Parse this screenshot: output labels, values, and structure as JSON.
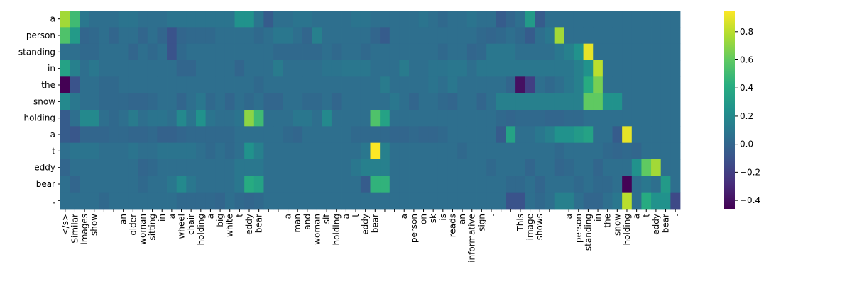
{
  "chart_data": {
    "type": "heatmap",
    "colormap": "viridis",
    "x_labels": [
      "</s>",
      "Similar",
      "images",
      "show",
      null,
      null,
      "an",
      "older",
      "woman",
      "sitting",
      "in",
      "a",
      "wheel",
      "chair",
      "holding",
      "a",
      "big",
      "white",
      "t",
      "eddy",
      "bear",
      null,
      null,
      "a",
      "man",
      "and",
      "woman",
      "sit",
      "holding",
      "a",
      "t",
      "eddy",
      "bear",
      null,
      null,
      "a",
      "person",
      "on",
      "sk",
      "is",
      "reads",
      "an",
      "informative",
      "sign",
      ".",
      null,
      null,
      "This",
      "image",
      "shows",
      null,
      null,
      "a",
      "person",
      "standing",
      "in",
      "the",
      "snow",
      "holding",
      "a",
      "t",
      "eddy",
      "bear",
      "."
    ],
    "y_labels": [
      "a",
      "person",
      "standing",
      "in",
      "the",
      "snow",
      "holding",
      "a",
      "t",
      "eddy",
      "bear",
      "."
    ],
    "z": [
      [
        0.75,
        0.5,
        0.1,
        0.05,
        0.05,
        0.05,
        0.08,
        0.08,
        0.05,
        0.05,
        0.05,
        0.08,
        0.08,
        0.08,
        0.08,
        0.08,
        0.08,
        0.08,
        0.25,
        0.25,
        0.08,
        -0.05,
        0.05,
        0.05,
        0.08,
        0.08,
        0.05,
        0.05,
        0.05,
        0.05,
        0.08,
        0.08,
        0.05,
        0.05,
        0.05,
        0.05,
        0.05,
        0.08,
        0.05,
        0.02,
        0.05,
        0.05,
        0.08,
        0.05,
        0.05,
        -0.05,
        0.0,
        0.05,
        0.3,
        -0.05,
        0.05,
        0.05,
        0.05,
        0.05,
        0.05,
        0.05,
        0.05,
        0.05,
        0.05,
        0.05,
        0.05,
        0.05,
        0.05,
        0.05
      ],
      [
        0.55,
        0.3,
        0.0,
        0.02,
        0.05,
        0.0,
        0.05,
        0.05,
        0.0,
        0.05,
        0.0,
        -0.1,
        0.0,
        0.02,
        0.02,
        0.02,
        0.05,
        0.05,
        0.05,
        0.05,
        0.02,
        0.05,
        0.1,
        0.1,
        0.05,
        0.0,
        0.15,
        0.05,
        0.05,
        0.05,
        0.05,
        0.05,
        0.0,
        -0.05,
        0.05,
        0.05,
        0.05,
        0.05,
        0.05,
        0.05,
        0.05,
        0.05,
        0.05,
        0.02,
        0.0,
        0.02,
        0.05,
        0.02,
        -0.05,
        0.05,
        0.1,
        0.75,
        0.05,
        0.05,
        0.05,
        0.05,
        0.05,
        0.05,
        0.05,
        0.05,
        0.05,
        0.05,
        0.05,
        0.05
      ],
      [
        0.05,
        0.05,
        0.02,
        0.02,
        0.05,
        0.05,
        0.05,
        0.0,
        0.05,
        0.02,
        0.05,
        -0.1,
        0.02,
        0.05,
        0.05,
        0.05,
        0.05,
        0.05,
        0.05,
        0.05,
        0.05,
        0.05,
        0.02,
        0.02,
        0.02,
        0.02,
        0.02,
        0.05,
        0.02,
        0.05,
        0.05,
        0.02,
        0.05,
        0.05,
        0.05,
        0.05,
        0.05,
        0.05,
        0.05,
        0.02,
        0.05,
        0.05,
        0.0,
        0.02,
        0.1,
        0.1,
        0.1,
        0.05,
        0.05,
        0.05,
        0.05,
        0.1,
        0.15,
        0.25,
        0.9,
        0.05,
        0.05,
        0.05,
        0.05,
        0.05,
        0.05,
        0.05,
        0.05,
        0.05
      ],
      [
        0.35,
        0.15,
        0.05,
        0.1,
        0.05,
        0.05,
        0.05,
        0.05,
        0.05,
        0.05,
        0.05,
        0.05,
        0.0,
        0.0,
        0.05,
        0.05,
        0.05,
        0.05,
        0.0,
        0.05,
        0.05,
        0.05,
        0.12,
        0.05,
        0.05,
        0.05,
        0.05,
        0.08,
        0.08,
        0.1,
        0.1,
        0.1,
        0.05,
        0.05,
        0.05,
        0.12,
        0.05,
        0.05,
        0.08,
        0.08,
        0.1,
        0.1,
        0.05,
        0.1,
        0.1,
        0.1,
        0.1,
        0.1,
        0.1,
        0.1,
        0.1,
        0.1,
        0.1,
        0.15,
        0.25,
        0.8,
        0.05,
        0.05,
        0.05,
        0.05,
        0.05,
        0.05,
        0.05,
        0.05
      ],
      [
        -0.5,
        -0.1,
        0.05,
        0.05,
        0.02,
        0.02,
        0.05,
        0.05,
        0.05,
        0.05,
        0.05,
        0.05,
        0.05,
        0.05,
        0.05,
        0.05,
        0.05,
        0.05,
        0.05,
        0.05,
        0.02,
        0.05,
        0.05,
        0.05,
        0.05,
        0.05,
        0.05,
        0.05,
        0.05,
        0.05,
        0.05,
        0.05,
        0.05,
        0.12,
        0.05,
        0.05,
        0.05,
        0.05,
        0.08,
        0.05,
        0.1,
        0.05,
        0.05,
        0.05,
        0.05,
        0.05,
        0.0,
        -0.4,
        -0.2,
        0.05,
        0.02,
        0.05,
        0.1,
        0.15,
        0.4,
        0.65,
        0.05,
        0.05,
        0.05,
        0.05,
        0.05,
        0.05,
        0.05,
        0.05
      ],
      [
        0.2,
        0.1,
        0.05,
        0.05,
        0.02,
        0.02,
        0.02,
        0.0,
        0.0,
        0.02,
        0.05,
        0.05,
        0.0,
        0.05,
        0.1,
        0.02,
        0.05,
        0.0,
        0.05,
        0.02,
        0.05,
        0.0,
        0.0,
        0.05,
        0.05,
        0.02,
        0.02,
        0.05,
        0.0,
        0.05,
        0.05,
        0.05,
        0.05,
        0.05,
        0.1,
        0.05,
        0.0,
        0.05,
        0.05,
        0.02,
        0.0,
        0.05,
        0.05,
        0.0,
        0.05,
        0.15,
        0.15,
        0.15,
        0.15,
        0.15,
        0.15,
        0.15,
        0.15,
        0.15,
        0.6,
        0.6,
        0.25,
        0.25,
        0.05,
        0.05,
        0.05,
        0.05,
        0.05,
        0.05
      ],
      [
        -0.05,
        0.05,
        0.2,
        0.2,
        0.05,
        0.02,
        0.05,
        0.12,
        0.05,
        0.08,
        0.08,
        0.05,
        0.2,
        0.08,
        0.25,
        0.08,
        0.05,
        0.05,
        0.08,
        0.7,
        0.5,
        0.05,
        0.05,
        0.05,
        0.1,
        0.1,
        0.05,
        0.2,
        0.05,
        0.05,
        0.05,
        0.05,
        0.55,
        0.35,
        0.05,
        0.05,
        0.05,
        0.05,
        0.05,
        0.05,
        0.05,
        0.05,
        0.05,
        0.05,
        0.05,
        0.02,
        0.0,
        0.02,
        0.02,
        0.02,
        0.0,
        0.0,
        0.02,
        0.02,
        0.05,
        0.05,
        0.05,
        0.05,
        0.05,
        0.05,
        0.05,
        0.05,
        0.05,
        0.05
      ],
      [
        -0.05,
        -0.08,
        0.0,
        0.0,
        0.0,
        0.02,
        0.02,
        0.0,
        0.0,
        0.02,
        -0.02,
        -0.02,
        0.0,
        0.02,
        0.02,
        0.02,
        0.02,
        0.02,
        0.05,
        0.05,
        0.05,
        0.05,
        0.05,
        0.02,
        0.0,
        0.05,
        0.05,
        0.05,
        0.05,
        0.05,
        0.02,
        0.02,
        0.02,
        0.02,
        0.0,
        0.0,
        0.02,
        0.0,
        0.0,
        0.02,
        0.05,
        0.05,
        0.05,
        0.05,
        0.05,
        -0.05,
        0.35,
        0.05,
        0.05,
        0.1,
        0.15,
        0.25,
        0.25,
        0.3,
        0.35,
        0.05,
        0.05,
        -0.05,
        0.9,
        0.05,
        0.05,
        0.05,
        0.05,
        0.05
      ],
      [
        0.05,
        0.08,
        0.08,
        0.08,
        0.05,
        0.05,
        0.05,
        0.08,
        0.05,
        0.05,
        0.08,
        0.08,
        0.08,
        0.08,
        0.05,
        0.02,
        0.05,
        0.02,
        0.05,
        0.25,
        0.15,
        0.05,
        0.05,
        0.05,
        0.05,
        0.05,
        0.05,
        0.05,
        0.05,
        0.05,
        0.05,
        0.1,
        0.95,
        0.15,
        0.05,
        0.05,
        0.05,
        0.05,
        0.05,
        0.05,
        0.05,
        0.02,
        0.05,
        0.05,
        0.05,
        0.05,
        0.05,
        0.05,
        0.05,
        0.05,
        0.05,
        0.02,
        0.05,
        0.05,
        0.05,
        0.05,
        0.02,
        0.0,
        0.02,
        0.0,
        0.05,
        0.05,
        0.05,
        0.05
      ],
      [
        0.0,
        0.05,
        0.05,
        0.05,
        0.05,
        0.05,
        0.05,
        0.05,
        0.0,
        0.02,
        0.05,
        0.05,
        0.05,
        0.05,
        0.05,
        0.05,
        0.05,
        0.05,
        0.1,
        0.1,
        0.1,
        0.05,
        0.05,
        0.05,
        0.05,
        0.05,
        0.05,
        0.05,
        0.05,
        0.05,
        0.1,
        0.15,
        0.15,
        0.15,
        0.05,
        0.05,
        0.05,
        0.05,
        0.05,
        0.05,
        0.05,
        0.05,
        0.05,
        0.05,
        0.02,
        0.05,
        0.05,
        0.05,
        0.0,
        0.05,
        0.05,
        0.0,
        0.02,
        0.05,
        0.05,
        0.0,
        0.05,
        0.05,
        0.05,
        0.25,
        0.6,
        0.75,
        0.05,
        0.05
      ],
      [
        0.05,
        0.0,
        0.05,
        0.05,
        0.05,
        0.05,
        0.05,
        0.05,
        0.02,
        0.05,
        0.05,
        0.1,
        0.2,
        0.1,
        0.05,
        0.05,
        0.05,
        0.05,
        0.1,
        0.4,
        0.35,
        0.05,
        0.05,
        0.05,
        0.05,
        0.05,
        0.05,
        0.05,
        0.05,
        0.05,
        0.05,
        -0.05,
        0.45,
        0.45,
        0.05,
        0.05,
        0.05,
        0.05,
        0.05,
        0.05,
        0.05,
        0.05,
        0.05,
        0.05,
        0.05,
        0.05,
        0.02,
        0.02,
        0.05,
        0.0,
        0.05,
        0.05,
        0.05,
        0.02,
        0.05,
        0.02,
        0.02,
        0.05,
        -0.45,
        0.05,
        0.1,
        0.05,
        0.3,
        0.05
      ],
      [
        0.05,
        0.05,
        0.05,
        0.05,
        0.02,
        0.05,
        0.05,
        0.05,
        0.05,
        0.05,
        0.05,
        0.05,
        0.02,
        0.02,
        0.02,
        0.02,
        0.0,
        0.05,
        0.02,
        0.0,
        0.02,
        0.05,
        0.05,
        0.05,
        0.05,
        0.05,
        0.05,
        0.05,
        0.05,
        0.05,
        0.05,
        0.05,
        0.05,
        0.05,
        0.05,
        0.05,
        0.05,
        0.05,
        0.05,
        0.05,
        0.05,
        0.05,
        0.05,
        0.05,
        0.05,
        0.05,
        -0.1,
        -0.1,
        0.05,
        0.02,
        0.05,
        0.15,
        0.15,
        0.05,
        0.0,
        0.0,
        0.05,
        0.1,
        0.8,
        0.05,
        0.4,
        0.25,
        0.25,
        -0.15
      ]
    ],
    "zlim": [
      -0.46,
      0.95
    ],
    "colorbar_ticks": [
      {
        "value": -0.4,
        "label": "−0.4"
      },
      {
        "value": -0.2,
        "label": "−0.2"
      },
      {
        "value": 0,
        "label": "0.0"
      },
      0.2,
      0.4,
      0.6,
      0.8
    ]
  }
}
